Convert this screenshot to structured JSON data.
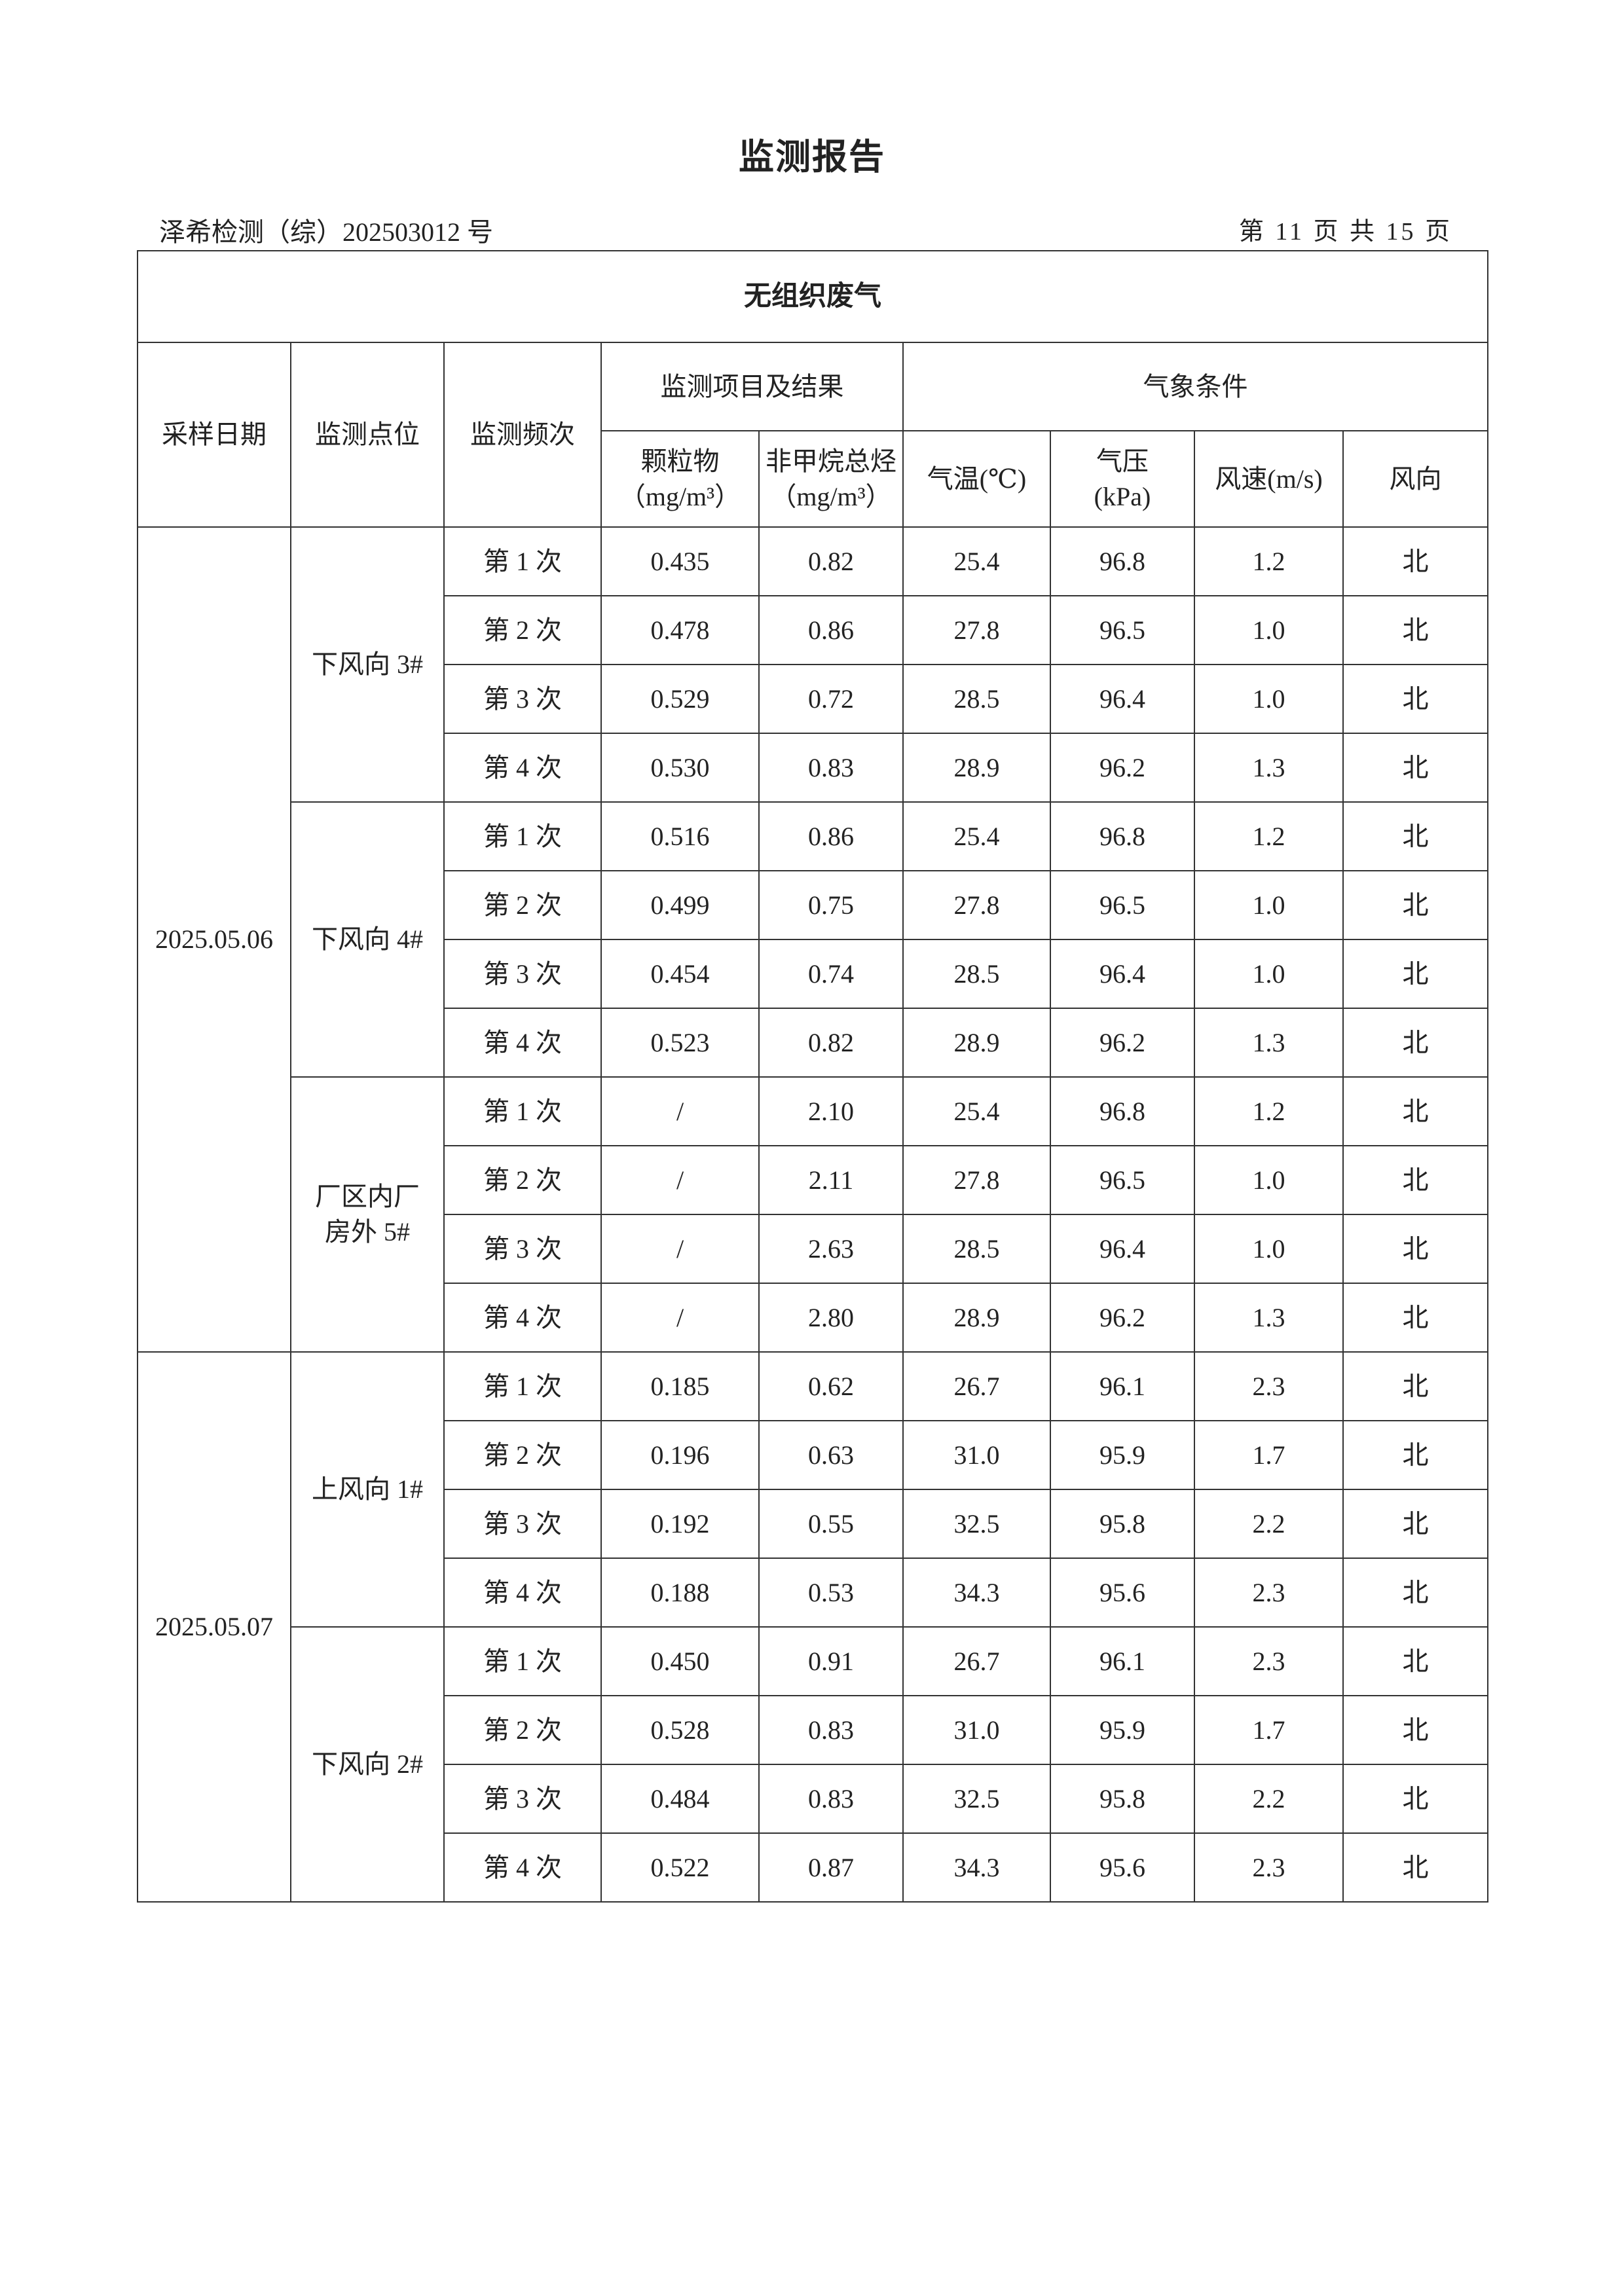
{
  "header": {
    "title": "监测报告",
    "report_no": "泽希检测（综）202503012 号",
    "page": "第 11 页 共 15 页"
  },
  "table": {
    "section_title": "无组织废气",
    "col_date": "采样日期",
    "col_point": "监测点位",
    "col_freq": "监测频次",
    "group_items": "监测项目及结果",
    "group_weather": "气象条件",
    "pm_name": "颗粒物",
    "pm_unit": "（mg/m³）",
    "nmhc_name": "非甲烷总烃",
    "nmhc_unit": "（mg/m³）",
    "temp": "气温(℃)",
    "pressure_name": "气压",
    "pressure_unit": "(kPa)",
    "wind_speed": "风速(m/s)",
    "wind_dir": "风向",
    "dates": [
      {
        "date": "2025.05.06",
        "points": [
          {
            "name": "下风向 3#",
            "rows": [
              [
                "第 1 次",
                "0.435",
                "0.82",
                "25.4",
                "96.8",
                "1.2",
                "北"
              ],
              [
                "第 2 次",
                "0.478",
                "0.86",
                "27.8",
                "96.5",
                "1.0",
                "北"
              ],
              [
                "第 3 次",
                "0.529",
                "0.72",
                "28.5",
                "96.4",
                "1.0",
                "北"
              ],
              [
                "第 4 次",
                "0.530",
                "0.83",
                "28.9",
                "96.2",
                "1.3",
                "北"
              ]
            ]
          },
          {
            "name": "下风向 4#",
            "rows": [
              [
                "第 1 次",
                "0.516",
                "0.86",
                "25.4",
                "96.8",
                "1.2",
                "北"
              ],
              [
                "第 2 次",
                "0.499",
                "0.75",
                "27.8",
                "96.5",
                "1.0",
                "北"
              ],
              [
                "第 3 次",
                "0.454",
                "0.74",
                "28.5",
                "96.4",
                "1.0",
                "北"
              ],
              [
                "第 4 次",
                "0.523",
                "0.82",
                "28.9",
                "96.2",
                "1.3",
                "北"
              ]
            ]
          },
          {
            "name": "厂区内厂房外 5#",
            "rows": [
              [
                "第 1 次",
                "/",
                "2.10",
                "25.4",
                "96.8",
                "1.2",
                "北"
              ],
              [
                "第 2 次",
                "/",
                "2.11",
                "27.8",
                "96.5",
                "1.0",
                "北"
              ],
              [
                "第 3 次",
                "/",
                "2.63",
                "28.5",
                "96.4",
                "1.0",
                "北"
              ],
              [
                "第 4 次",
                "/",
                "2.80",
                "28.9",
                "96.2",
                "1.3",
                "北"
              ]
            ]
          }
        ]
      },
      {
        "date": "2025.05.07",
        "points": [
          {
            "name": "上风向 1#",
            "rows": [
              [
                "第 1 次",
                "0.185",
                "0.62",
                "26.7",
                "96.1",
                "2.3",
                "北"
              ],
              [
                "第 2 次",
                "0.196",
                "0.63",
                "31.0",
                "95.9",
                "1.7",
                "北"
              ],
              [
                "第 3 次",
                "0.192",
                "0.55",
                "32.5",
                "95.8",
                "2.2",
                "北"
              ],
              [
                "第 4 次",
                "0.188",
                "0.53",
                "34.3",
                "95.6",
                "2.3",
                "北"
              ]
            ]
          },
          {
            "name": "下风向 2#",
            "rows": [
              [
                "第 1 次",
                "0.450",
                "0.91",
                "26.7",
                "96.1",
                "2.3",
                "北"
              ],
              [
                "第 2 次",
                "0.528",
                "0.83",
                "31.0",
                "95.9",
                "1.7",
                "北"
              ],
              [
                "第 3 次",
                "0.484",
                "0.83",
                "32.5",
                "95.8",
                "2.2",
                "北"
              ],
              [
                "第 4 次",
                "0.522",
                "0.87",
                "34.3",
                "95.6",
                "2.3",
                "北"
              ]
            ]
          }
        ]
      }
    ]
  }
}
